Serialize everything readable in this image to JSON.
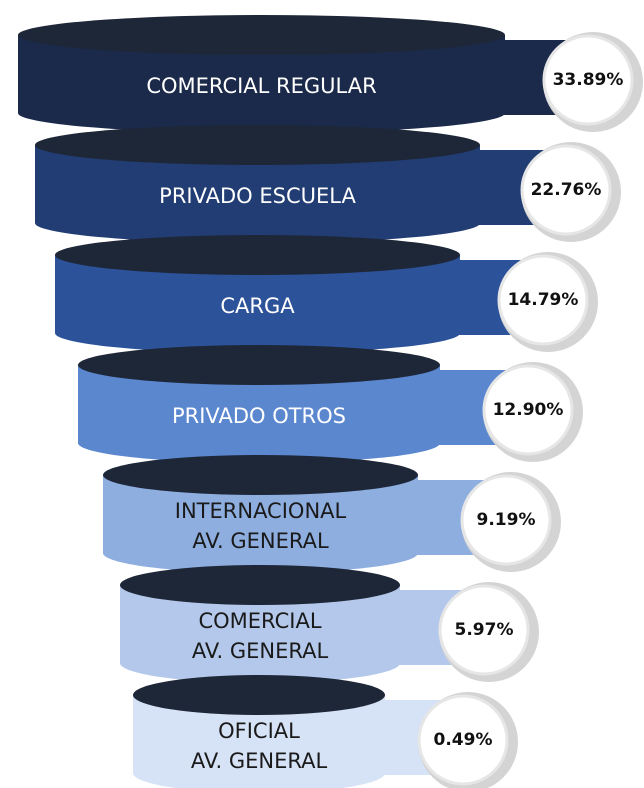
{
  "chart_data": {
    "type": "funnel",
    "categories": [
      "COMERCIAL REGULAR",
      "PRIVADO ESCUELA",
      "CARGA",
      "PRIVADO OTROS",
      "INTERNACIONAL\nAV. GENERAL",
      "COMERCIAL\nAV. GENERAL",
      "OFICIAL\nAV. GENERAL"
    ],
    "values": [
      33.89,
      22.76,
      14.79,
      12.9,
      9.19,
      5.97,
      0.49
    ],
    "value_labels": [
      "33.89%",
      "22.76%",
      "14.79%",
      "12.90%",
      "9.19%",
      "5.97%",
      "0.49%"
    ],
    "colors": [
      "#1b2a4a",
      "#223d73",
      "#2c529a",
      "#5b87cf",
      "#8eaee0",
      "#b3c8ea",
      "#d6e2f5"
    ],
    "label_colors": [
      "#ffffff",
      "#ffffff",
      "#ffffff",
      "#ffffff",
      "#1a1a1a",
      "#1a1a1a",
      "#1a1a1a"
    ]
  }
}
